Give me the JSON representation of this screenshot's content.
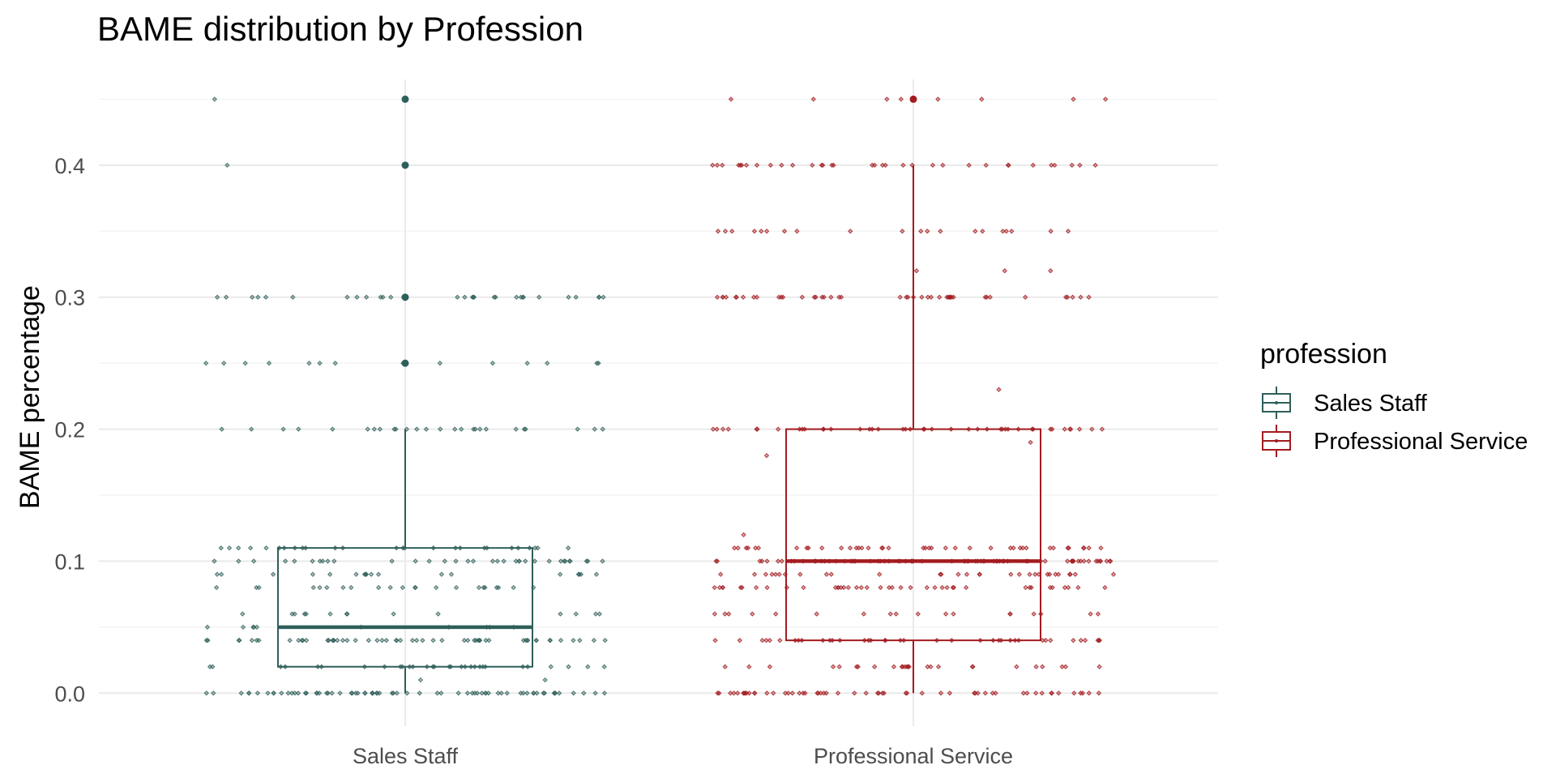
{
  "chart_data": {
    "type": "boxplot",
    "title": "BAME distribution by Profession",
    "xlabel": "",
    "ylabel": "BAME percentage",
    "ylim": [
      -0.025,
      0.465
    ],
    "yticks": [
      "0.0",
      "0.1",
      "0.2",
      "0.3",
      "0.4"
    ],
    "yticks_values": [
      0.0,
      0.1,
      0.2,
      0.3,
      0.4
    ],
    "grid": true,
    "categories": [
      "Sales Staff",
      "Professional Service"
    ],
    "legend": {
      "title": "profession",
      "placement": "right"
    },
    "series": [
      {
        "name": "Sales Staff",
        "color": "#2f5f5a",
        "box": {
          "min": 0.0,
          "q1": 0.02,
          "median": 0.05,
          "q3": 0.11,
          "max": 0.2
        },
        "outliers": [
          0.25,
          0.3,
          0.4,
          0.45
        ],
        "jitter_levels": [
          {
            "y": 0.0,
            "n": 70
          },
          {
            "y": 0.01,
            "n": 2
          },
          {
            "y": 0.02,
            "n": 30
          },
          {
            "y": 0.04,
            "n": 55
          },
          {
            "y": 0.05,
            "n": 10
          },
          {
            "y": 0.06,
            "n": 14
          },
          {
            "y": 0.08,
            "n": 22
          },
          {
            "y": 0.09,
            "n": 18
          },
          {
            "y": 0.1,
            "n": 34
          },
          {
            "y": 0.11,
            "n": 26
          },
          {
            "y": 0.2,
            "n": 26
          },
          {
            "y": 0.25,
            "n": 14
          },
          {
            "y": 0.3,
            "n": 30
          },
          {
            "y": 0.4,
            "n": 1
          },
          {
            "y": 0.45,
            "n": 1
          }
        ]
      },
      {
        "name": "Professional Service",
        "color": "#a31b1f",
        "box": {
          "min": 0.0,
          "q1": 0.04,
          "median": 0.1,
          "q3": 0.2,
          "max": 0.4
        },
        "outliers": [
          0.45
        ],
        "jitter_levels": [
          {
            "y": 0.0,
            "n": 55
          },
          {
            "y": 0.02,
            "n": 26
          },
          {
            "y": 0.04,
            "n": 38
          },
          {
            "y": 0.06,
            "n": 18
          },
          {
            "y": 0.08,
            "n": 40
          },
          {
            "y": 0.09,
            "n": 30
          },
          {
            "y": 0.1,
            "n": 70
          },
          {
            "y": 0.11,
            "n": 40
          },
          {
            "y": 0.12,
            "n": 1
          },
          {
            "y": 0.18,
            "n": 1
          },
          {
            "y": 0.19,
            "n": 1
          },
          {
            "y": 0.2,
            "n": 42
          },
          {
            "y": 0.23,
            "n": 1
          },
          {
            "y": 0.3,
            "n": 44
          },
          {
            "y": 0.32,
            "n": 3
          },
          {
            "y": 0.35,
            "n": 20
          },
          {
            "y": 0.4,
            "n": 34
          },
          {
            "y": 0.45,
            "n": 8
          }
        ]
      }
    ]
  }
}
